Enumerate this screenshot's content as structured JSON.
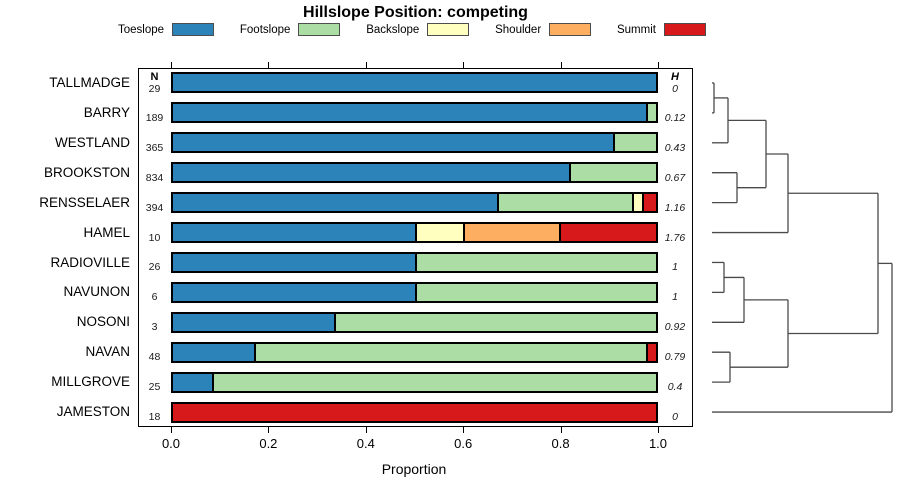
{
  "title": "Hillslope Position: competing",
  "legend": {
    "items": [
      {
        "label": "Toeslope",
        "color": "#2B83BA"
      },
      {
        "label": "Footslope",
        "color": "#ABDDA4"
      },
      {
        "label": "Backslope",
        "color": "#FFFFBF"
      },
      {
        "label": "Shoulder",
        "color": "#FDAE61"
      },
      {
        "label": "Summit",
        "color": "#D7191C"
      }
    ]
  },
  "chart_data": {
    "type": "bar",
    "stacked": true,
    "orientation": "horizontal",
    "title": "Hillslope Position: competing",
    "xlabel": "Proportion",
    "xlim": [
      0,
      1
    ],
    "x_ticks": [
      "0.0",
      "0.2",
      "0.4",
      "0.6",
      "0.8",
      "1.0"
    ],
    "n_header": "N",
    "h_header": "H",
    "categories": [
      "Toeslope",
      "Footslope",
      "Backslope",
      "Shoulder",
      "Summit"
    ],
    "colors": [
      "#2B83BA",
      "#ABDDA4",
      "#FFFFBF",
      "#FDAE61",
      "#D7191C"
    ],
    "rows": [
      {
        "label": "TALLMADGE",
        "n": "29",
        "h": "0",
        "values": [
          1,
          0,
          0,
          0,
          0
        ]
      },
      {
        "label": "BARRY",
        "n": "189",
        "h": "0.12",
        "values": [
          0.98,
          0.02,
          0,
          0,
          0
        ]
      },
      {
        "label": "WESTLAND",
        "n": "365",
        "h": "0.43",
        "values": [
          0.91,
          0.09,
          0,
          0,
          0
        ]
      },
      {
        "label": "BROOKSTON",
        "n": "834",
        "h": "0.67",
        "values": [
          0.82,
          0.18,
          0,
          0,
          0
        ]
      },
      {
        "label": "RENSSELAER",
        "n": "394",
        "h": "1.16",
        "values": [
          0.67,
          0.28,
          0.02,
          0,
          0.03
        ]
      },
      {
        "label": "HAMEL",
        "n": "10",
        "h": "1.76",
        "values": [
          0.5,
          0,
          0.1,
          0.2,
          0.2
        ]
      },
      {
        "label": "RADIOVILLE",
        "n": "26",
        "h": "1",
        "values": [
          0.5,
          0.5,
          0,
          0,
          0
        ]
      },
      {
        "label": "NAVUNON",
        "n": "6",
        "h": "1",
        "values": [
          0.5,
          0.5,
          0,
          0,
          0
        ]
      },
      {
        "label": "NOSONI",
        "n": "3",
        "h": "0.92",
        "values": [
          0.333,
          0.667,
          0,
          0,
          0
        ]
      },
      {
        "label": "NAVAN",
        "n": "48",
        "h": "0.79",
        "values": [
          0.167,
          0.813,
          0,
          0,
          0.02
        ]
      },
      {
        "label": "MILLGROVE",
        "n": "25",
        "h": "0.4",
        "values": [
          0.08,
          0.92,
          0,
          0,
          0
        ]
      },
      {
        "label": "JAMESTON",
        "n": "18",
        "h": "0",
        "values": [
          0,
          0,
          0,
          0,
          1
        ]
      }
    ]
  },
  "dendrogram": {
    "line_color": "#4a4a4a",
    "leaf_order": [
      "TALLMADGE",
      "BARRY",
      "WESTLAND",
      "BROOKSTON",
      "RENSSELAER",
      "HAMEL",
      "RADIOVILLE",
      "NAVUNON",
      "NOSONI",
      "NAVAN",
      "MILLGROVE",
      "JAMESTON"
    ],
    "tree": {
      "x": 180,
      "children": [
        {
          "x": 166,
          "children": [
            {
              "x": 76,
              "children": [
                {
                  "x": 54,
                  "children": [
                    {
                      "x": 16,
                      "children": [
                        {
                          "x": 2,
                          "children": [
                            {
                              "leaf": 0
                            },
                            {
                              "leaf": 1
                            }
                          ]
                        },
                        {
                          "leaf": 2
                        }
                      ]
                    },
                    {
                      "x": 25,
                      "children": [
                        {
                          "leaf": 3
                        },
                        {
                          "leaf": 4
                        }
                      ]
                    }
                  ]
                },
                {
                  "leaf": 5
                }
              ]
            },
            {
              "x": 76,
              "children": [
                {
                  "x": 32,
                  "children": [
                    {
                      "x": 12,
                      "children": [
                        {
                          "leaf": 6
                        },
                        {
                          "leaf": 7
                        }
                      ]
                    },
                    {
                      "leaf": 8
                    }
                  ]
                },
                {
                  "x": 18,
                  "children": [
                    {
                      "leaf": 9
                    },
                    {
                      "leaf": 10
                    }
                  ]
                }
              ]
            }
          ]
        },
        {
          "leaf": 11
        }
      ]
    }
  }
}
